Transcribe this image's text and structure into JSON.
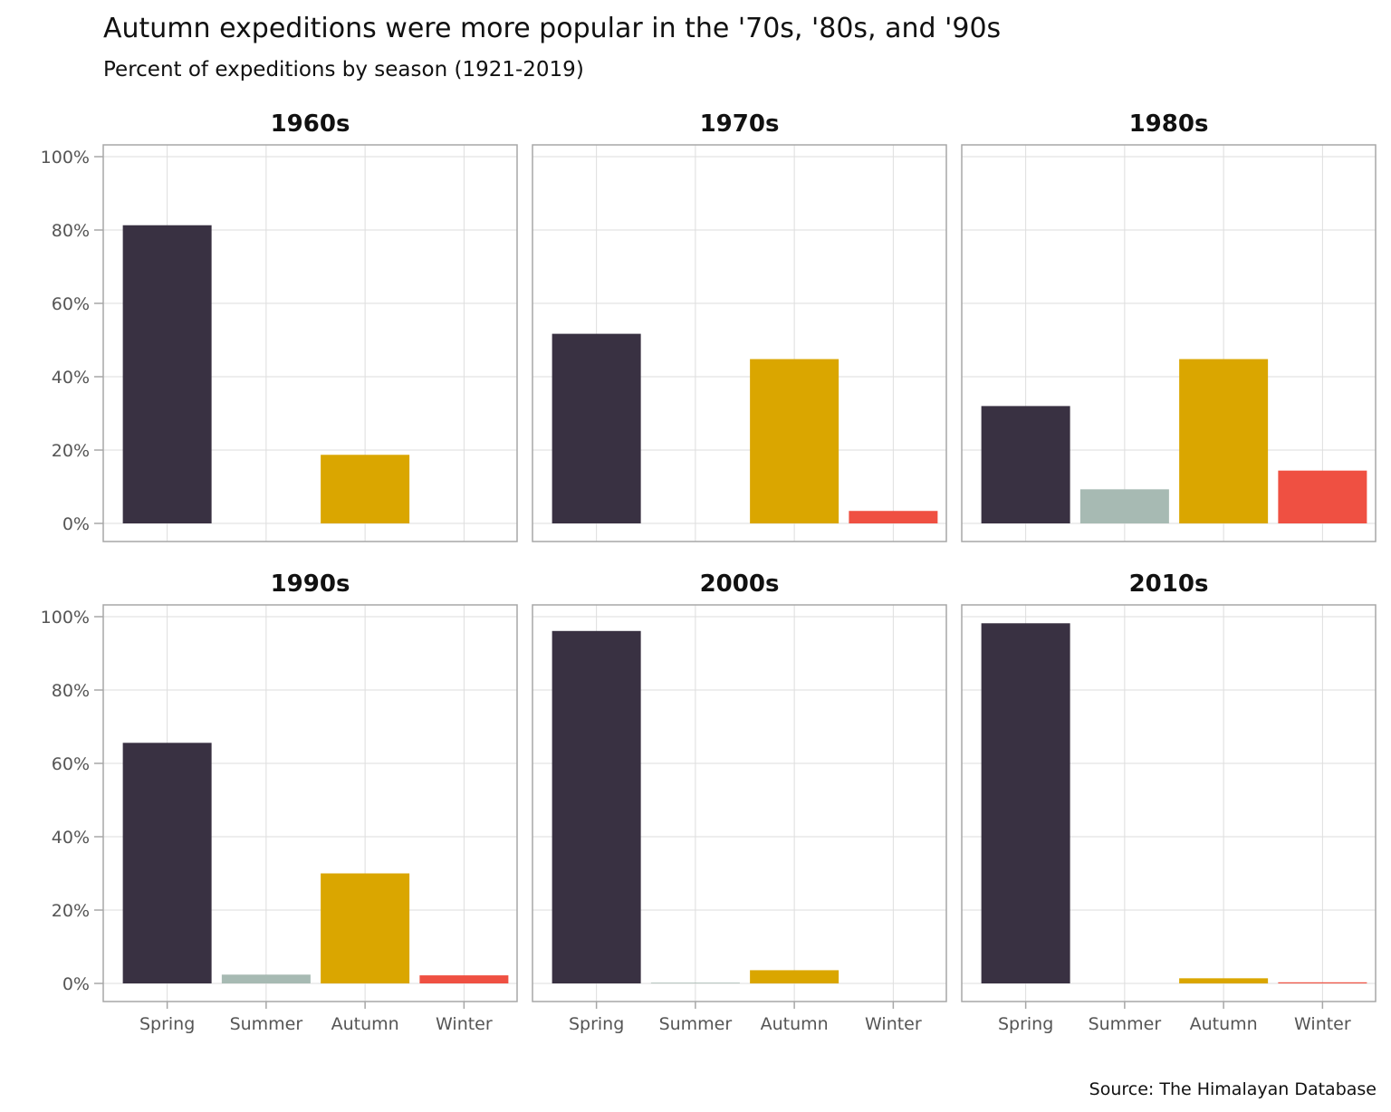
{
  "chart_data": {
    "type": "bar",
    "title": "Autumn expeditions were more popular in the '70s, '80s, and '90s",
    "subtitle": "Percent of expeditions by season (1921-2019)",
    "caption": "Source: The Himalayan Database",
    "categories": [
      "Spring",
      "Summer",
      "Autumn",
      "Winter"
    ],
    "colors": {
      "Spring": "#393142",
      "Summer": "#a7bab3",
      "Autumn": "#daa600",
      "Winter": "#ef5042"
    },
    "y_ticks": [
      0,
      20,
      40,
      60,
      80,
      100
    ],
    "y_tick_labels": [
      "0%",
      "20%",
      "40%",
      "60%",
      "80%",
      "100%"
    ],
    "ylim": [
      0,
      100
    ],
    "grid": true,
    "panels": [
      {
        "label": "1960s",
        "values": {
          "Spring": 81.3,
          "Summer": 0,
          "Autumn": 18.7,
          "Winter": 0
        }
      },
      {
        "label": "1970s",
        "values": {
          "Spring": 51.7,
          "Summer": 0,
          "Autumn": 44.8,
          "Winter": 3.4
        }
      },
      {
        "label": "1980s",
        "values": {
          "Spring": 32.0,
          "Summer": 9.3,
          "Autumn": 44.8,
          "Winter": 14.4
        }
      },
      {
        "label": "1990s",
        "values": {
          "Spring": 65.6,
          "Summer": 2.4,
          "Autumn": 30.0,
          "Winter": 2.2
        }
      },
      {
        "label": "2000s",
        "values": {
          "Spring": 96.1,
          "Summer": 0.2,
          "Autumn": 3.6,
          "Winter": 0
        }
      },
      {
        "label": "2010s",
        "values": {
          "Spring": 98.2,
          "Summer": 0,
          "Autumn": 1.4,
          "Winter": 0.3
        }
      }
    ]
  }
}
